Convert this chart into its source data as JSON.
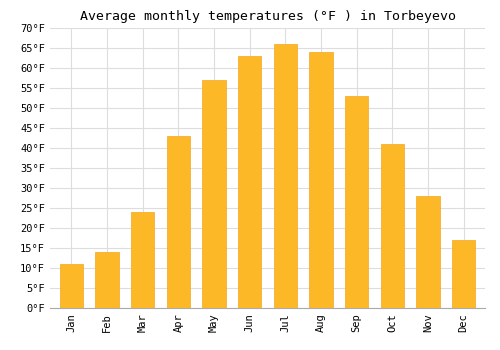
{
  "title": "Average monthly temperatures (°F ) in Torbeyevo",
  "months": [
    "Jan",
    "Feb",
    "Mar",
    "Apr",
    "May",
    "Jun",
    "Jul",
    "Aug",
    "Sep",
    "Oct",
    "Nov",
    "Dec"
  ],
  "values": [
    11,
    14,
    24,
    43,
    57,
    63,
    66,
    64,
    53,
    41,
    28,
    17
  ],
  "bar_color": "#FDB827",
  "bar_edge_color": "#F5A623",
  "ylim": [
    0,
    70
  ],
  "ytick_step": 5,
  "background_color": "#ffffff",
  "grid_color": "#dddddd",
  "title_fontsize": 9.5,
  "tick_fontsize": 7.5,
  "ylabel_suffix": "°F",
  "bar_width": 0.65
}
